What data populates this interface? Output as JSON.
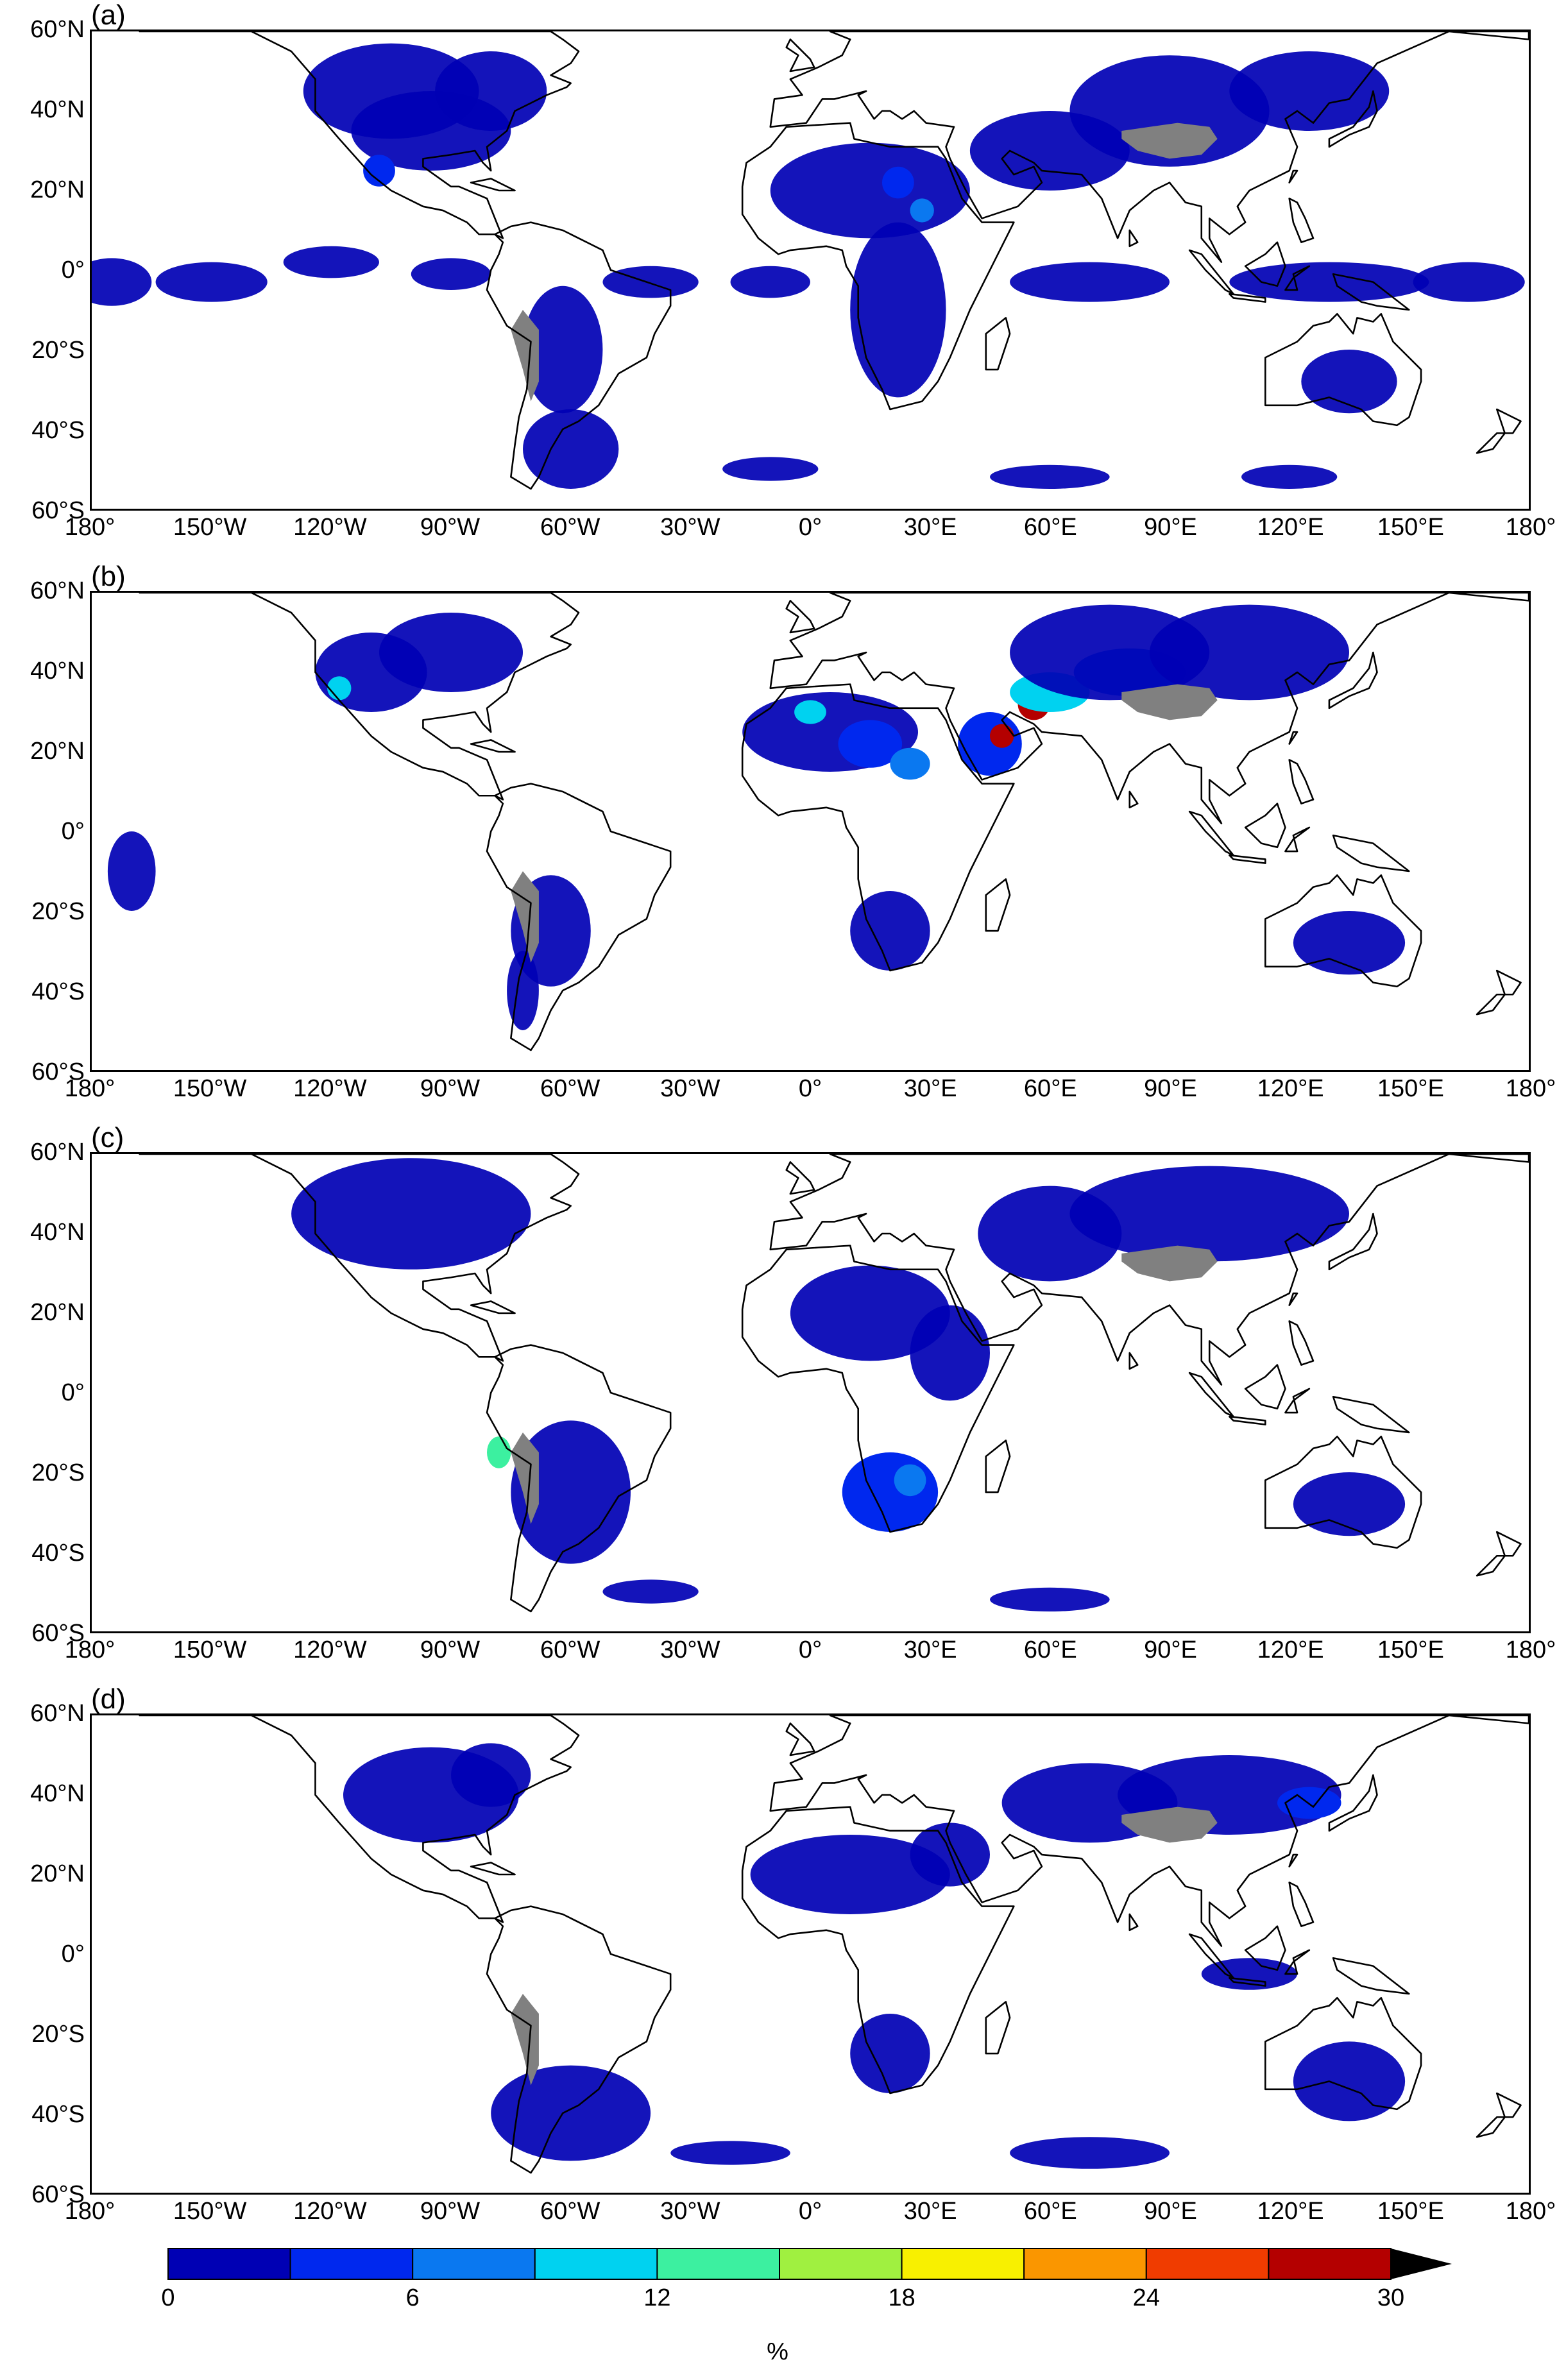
{
  "panels": [
    {
      "label": "(a)"
    },
    {
      "label": "(b)"
    },
    {
      "label": "(c)"
    },
    {
      "label": "(d)"
    }
  ],
  "lat_ticks": [
    "60°N",
    "40°N",
    "20°N",
    "0°",
    "20°S",
    "40°S",
    "60°S"
  ],
  "lon_ticks": [
    "180°",
    "150°W",
    "120°W",
    "90°W",
    "60°W",
    "30°W",
    "0°",
    "30°E",
    "60°E",
    "90°E",
    "120°E",
    "150°E",
    "180°"
  ],
  "colorbar": {
    "ticks": [
      "0",
      "6",
      "12",
      "18",
      "24",
      "30"
    ],
    "unit": "%",
    "colors": [
      "#0000b4",
      "#0028ee",
      "#0a78f0",
      "#00d2f0",
      "#3cf0a0",
      "#a0f040",
      "#f8f000",
      "#fa9600",
      "#f03c00",
      "#b40000"
    ],
    "extend": "max"
  },
  "colors": {
    "no_data": "#808080",
    "coast": "#000000"
  }
}
